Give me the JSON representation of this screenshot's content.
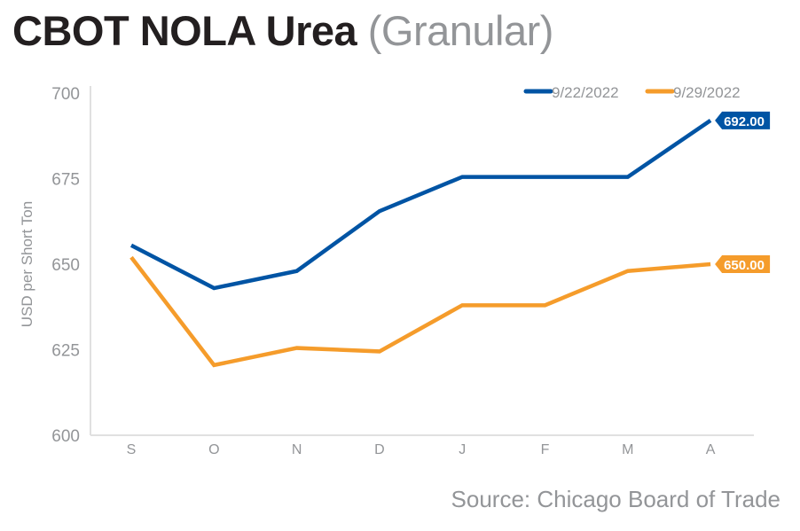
{
  "header": {
    "title_main": "CBOT NOLA Urea",
    "title_sub": "(Granular)"
  },
  "source": "Source: Chicago Board of Trade",
  "colors": {
    "series1": "#0054a4",
    "series2": "#f59c2b",
    "axis_text": "#939598",
    "axis_line": "#e0e0e0",
    "title": "#231f20"
  },
  "chart_data": {
    "type": "line",
    "title": "CBOT NOLA Urea (Granular)",
    "xlabel": "",
    "ylabel": "USD per Short Ton",
    "categories": [
      "S",
      "O",
      "N",
      "D",
      "J",
      "F",
      "M",
      "A"
    ],
    "ylim": [
      600,
      700
    ],
    "yticks": [
      600,
      625,
      650,
      675,
      700
    ],
    "grid": false,
    "legend_position": "top-right",
    "series": [
      {
        "name": "9/22/2022",
        "values": [
          655.5,
          643,
          648,
          665.5,
          675.5,
          675.5,
          675.5,
          692
        ],
        "end_label": "692.00"
      },
      {
        "name": "9/29/2022",
        "values": [
          652,
          620.5,
          625.5,
          624.5,
          638,
          638,
          648,
          650
        ],
        "end_label": "650.00"
      }
    ]
  }
}
